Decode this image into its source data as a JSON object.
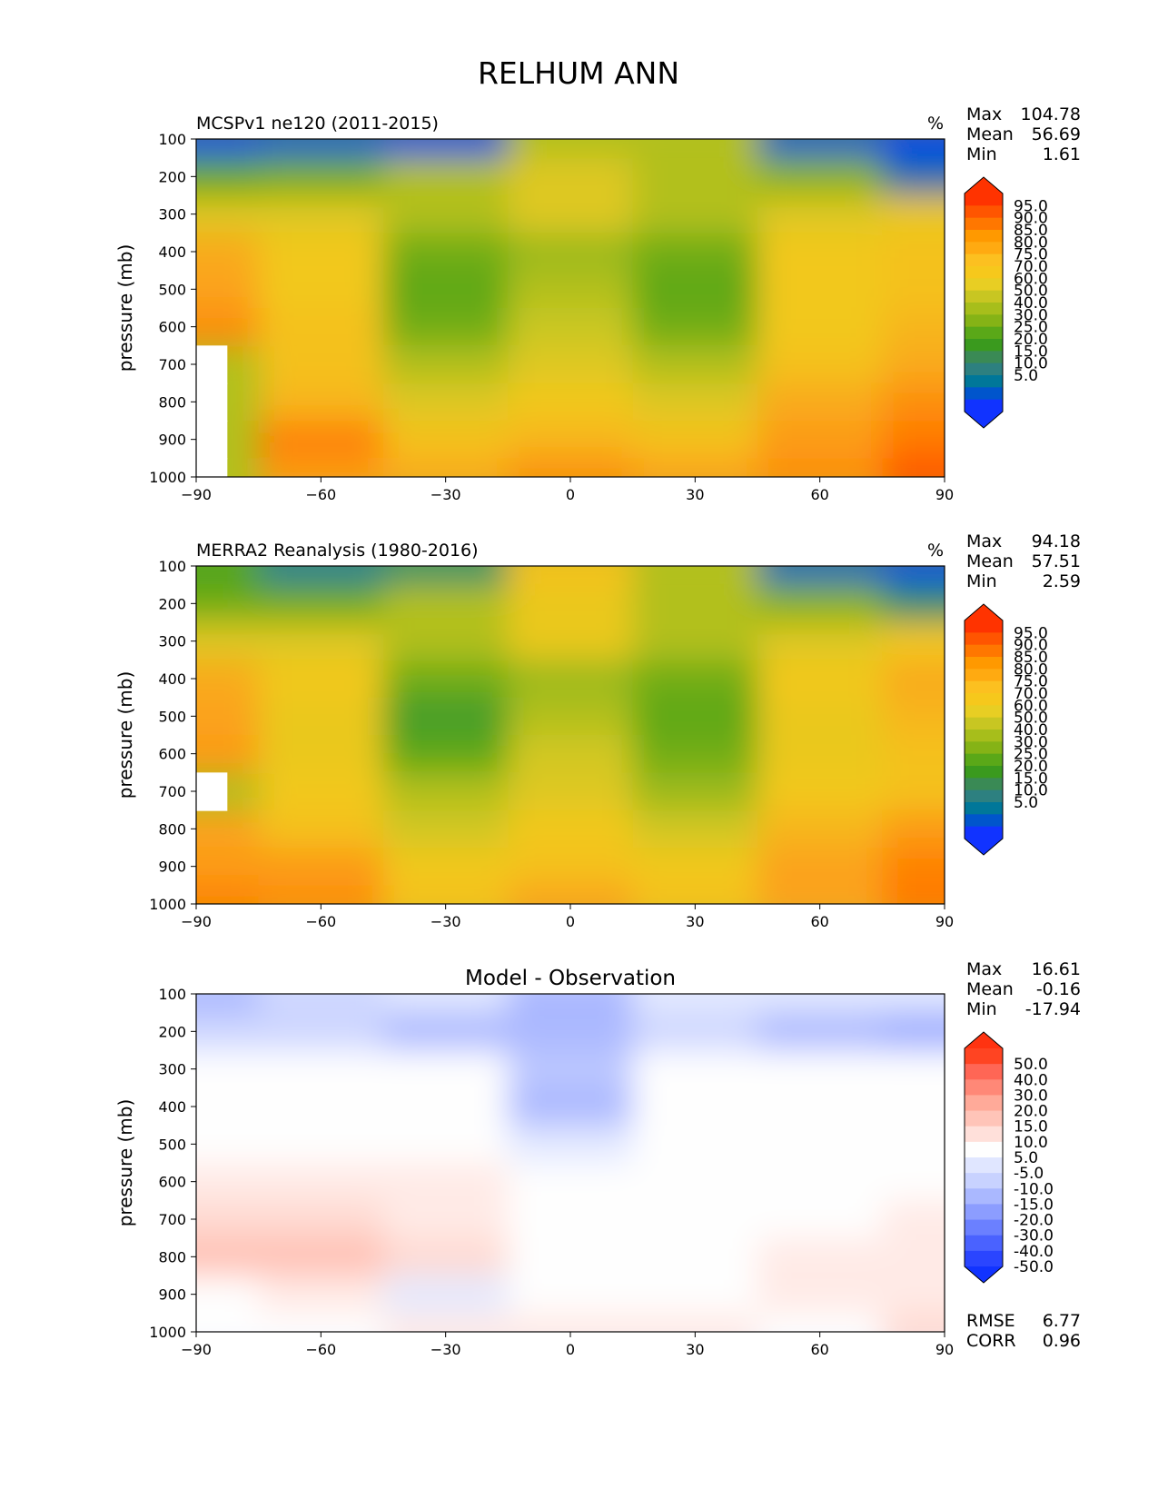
{
  "suptitle": "RELHUM ANN",
  "panels": [
    {
      "title_left": "MCSPv1 ne120 (2011-2015)",
      "title_center": "",
      "units": "%",
      "stats": [
        {
          "label": "Max",
          "value": "104.78"
        },
        {
          "label": "Mean",
          "value": "56.69"
        },
        {
          "label": "Min",
          "value": "1.61"
        }
      ],
      "colorbar": "abs",
      "bottom_stats": []
    },
    {
      "title_left": "MERRA2 Reanalysis (1980-2016)",
      "title_center": "",
      "units": "%",
      "stats": [
        {
          "label": "Max",
          "value": "94.18"
        },
        {
          "label": "Mean",
          "value": "57.51"
        },
        {
          "label": "Min",
          "value": "2.59"
        }
      ],
      "colorbar": "abs",
      "bottom_stats": []
    },
    {
      "title_left": "",
      "title_center": "Model - Observation",
      "units": "",
      "stats": [
        {
          "label": "Max",
          "value": "16.61"
        },
        {
          "label": "Mean",
          "value": "-0.16"
        },
        {
          "label": "Min",
          "value": "-17.94"
        }
      ],
      "colorbar": "diff",
      "bottom_stats": [
        {
          "label": "RMSE",
          "value": "6.77"
        },
        {
          "label": "CORR",
          "value": "0.96"
        }
      ]
    }
  ],
  "axes": {
    "ylabel": "pressure (mb)",
    "yticks": [
      "100",
      "200",
      "300",
      "400",
      "500",
      "600",
      "700",
      "800",
      "900",
      "1000"
    ],
    "xticks": [
      "−90",
      "−60",
      "−30",
      "0",
      "30",
      "60",
      "90"
    ]
  },
  "colorbars": {
    "abs": {
      "labels": [
        "95.0",
        "90.0",
        "85.0",
        "80.0",
        "75.0",
        "70.0",
        "60.0",
        "50.0",
        "40.0",
        "30.0",
        "25.0",
        "20.0",
        "15.0",
        "10.0",
        "5.0"
      ],
      "colors": [
        "#ff3300",
        "#ff5500",
        "#ff7700",
        "#ff9900",
        "#ffaa11",
        "#fcc020",
        "#f6c81c",
        "#e8ce23",
        "#c8c622",
        "#a7be1b",
        "#85b316",
        "#5aa818",
        "#3a9a1e",
        "#3a8a55",
        "#2d8080",
        "#007799",
        "#0055cc",
        "#1133ff"
      ],
      "over": "#ff3300",
      "under": "#1133ff"
    },
    "diff": {
      "labels": [
        "50.0",
        "40.0",
        "30.0",
        "20.0",
        "15.0",
        "10.0",
        "5.0",
        "-5.0",
        "-10.0",
        "-15.0",
        "-20.0",
        "-30.0",
        "-40.0",
        "-50.0"
      ],
      "colors": [
        "#ff4422",
        "#ff6655",
        "#ff8877",
        "#ffaa99",
        "#ffc4b8",
        "#ffe0da",
        "#fefefe",
        "#e0e6ff",
        "#c8d2ff",
        "#aab8ff",
        "#8c9dff",
        "#6b80ff",
        "#4a62ff",
        "#2a45ff"
      ],
      "over": "#ff3311",
      "under": "#1133ff"
    }
  },
  "chart_data": [
    {
      "type": "heatmap",
      "title": "MCSPv1 ne120 (2011-2015)",
      "units": "%",
      "xlabel": "",
      "ylabel": "pressure (mb)",
      "xlim": [
        -90,
        90
      ],
      "ylim": [
        1000,
        100
      ],
      "x": [
        -90,
        -60,
        -30,
        0,
        30,
        60,
        90
      ],
      "y": [
        100,
        200,
        300,
        400,
        500,
        600,
        700,
        800,
        900,
        1000
      ],
      "values": [
        [
          5,
          8,
          5,
          55,
          55,
          8,
          3
        ],
        [
          35,
          40,
          55,
          65,
          55,
          45,
          12
        ],
        [
          65,
          65,
          55,
          65,
          55,
          65,
          68
        ],
        [
          78,
          70,
          40,
          50,
          40,
          70,
          72
        ],
        [
          80,
          70,
          35,
          55,
          35,
          70,
          72
        ],
        [
          85,
          72,
          40,
          60,
          40,
          70,
          75
        ],
        [
          null,
          72,
          55,
          65,
          55,
          72,
          78
        ],
        [
          null,
          75,
          65,
          70,
          65,
          78,
          85
        ],
        [
          null,
          88,
          72,
          75,
          72,
          82,
          90
        ],
        [
          null,
          82,
          78,
          85,
          80,
          85,
          95
        ]
      ],
      "stats": {
        "max": 104.78,
        "mean": 56.69,
        "min": 1.61
      }
    },
    {
      "type": "heatmap",
      "title": "MERRA2 Reanalysis (1980-2016)",
      "units": "%",
      "xlabel": "",
      "ylabel": "pressure (mb)",
      "xlim": [
        -90,
        90
      ],
      "ylim": [
        1000,
        100
      ],
      "x": [
        -90,
        -60,
        -30,
        0,
        30,
        60,
        90
      ],
      "y": [
        100,
        200,
        300,
        400,
        500,
        600,
        700,
        800,
        900,
        1000
      ],
      "values": [
        [
          30,
          15,
          20,
          72,
          55,
          10,
          5
        ],
        [
          40,
          40,
          55,
          68,
          55,
          45,
          20
        ],
        [
          65,
          65,
          55,
          68,
          55,
          65,
          70
        ],
        [
          78,
          70,
          40,
          50,
          40,
          70,
          78
        ],
        [
          80,
          68,
          28,
          55,
          35,
          68,
          75
        ],
        [
          82,
          68,
          35,
          62,
          40,
          68,
          72
        ],
        [
          null,
          70,
          55,
          65,
          50,
          70,
          72
        ],
        [
          80,
          72,
          62,
          70,
          62,
          75,
          82
        ],
        [
          82,
          82,
          70,
          72,
          70,
          80,
          88
        ],
        [
          88,
          85,
          72,
          80,
          72,
          80,
          90
        ]
      ],
      "stats": {
        "max": 94.18,
        "mean": 57.51,
        "min": 2.59
      }
    },
    {
      "type": "heatmap",
      "title": "Model - Observation",
      "units": "",
      "xlabel": "",
      "ylabel": "pressure (mb)",
      "xlim": [
        -90,
        90
      ],
      "ylim": [
        1000,
        100
      ],
      "x": [
        -90,
        -60,
        -30,
        0,
        30,
        60,
        90
      ],
      "y": [
        100,
        200,
        300,
        400,
        500,
        600,
        700,
        800,
        900,
        1000
      ],
      "values": [
        [
          -12,
          -8,
          -6,
          -12,
          -6,
          -6,
          -6
        ],
        [
          -8,
          -8,
          -12,
          -12,
          -8,
          -12,
          -15
        ],
        [
          0,
          0,
          0,
          -10,
          0,
          0,
          0
        ],
        [
          0,
          0,
          0,
          -12,
          0,
          0,
          0
        ],
        [
          0,
          0,
          0,
          -6,
          0,
          0,
          0
        ],
        [
          6,
          6,
          6,
          0,
          0,
          0,
          0
        ],
        [
          8,
          8,
          6,
          0,
          0,
          0,
          6
        ],
        [
          12,
          12,
          8,
          0,
          0,
          6,
          6
        ],
        [
          0,
          6,
          -6,
          0,
          0,
          6,
          6
        ],
        [
          0,
          0,
          6,
          6,
          6,
          0,
          8
        ]
      ],
      "stats": {
        "max": 16.61,
        "mean": -0.16,
        "min": -17.94,
        "rmse": 6.77,
        "corr": 0.96
      }
    }
  ]
}
